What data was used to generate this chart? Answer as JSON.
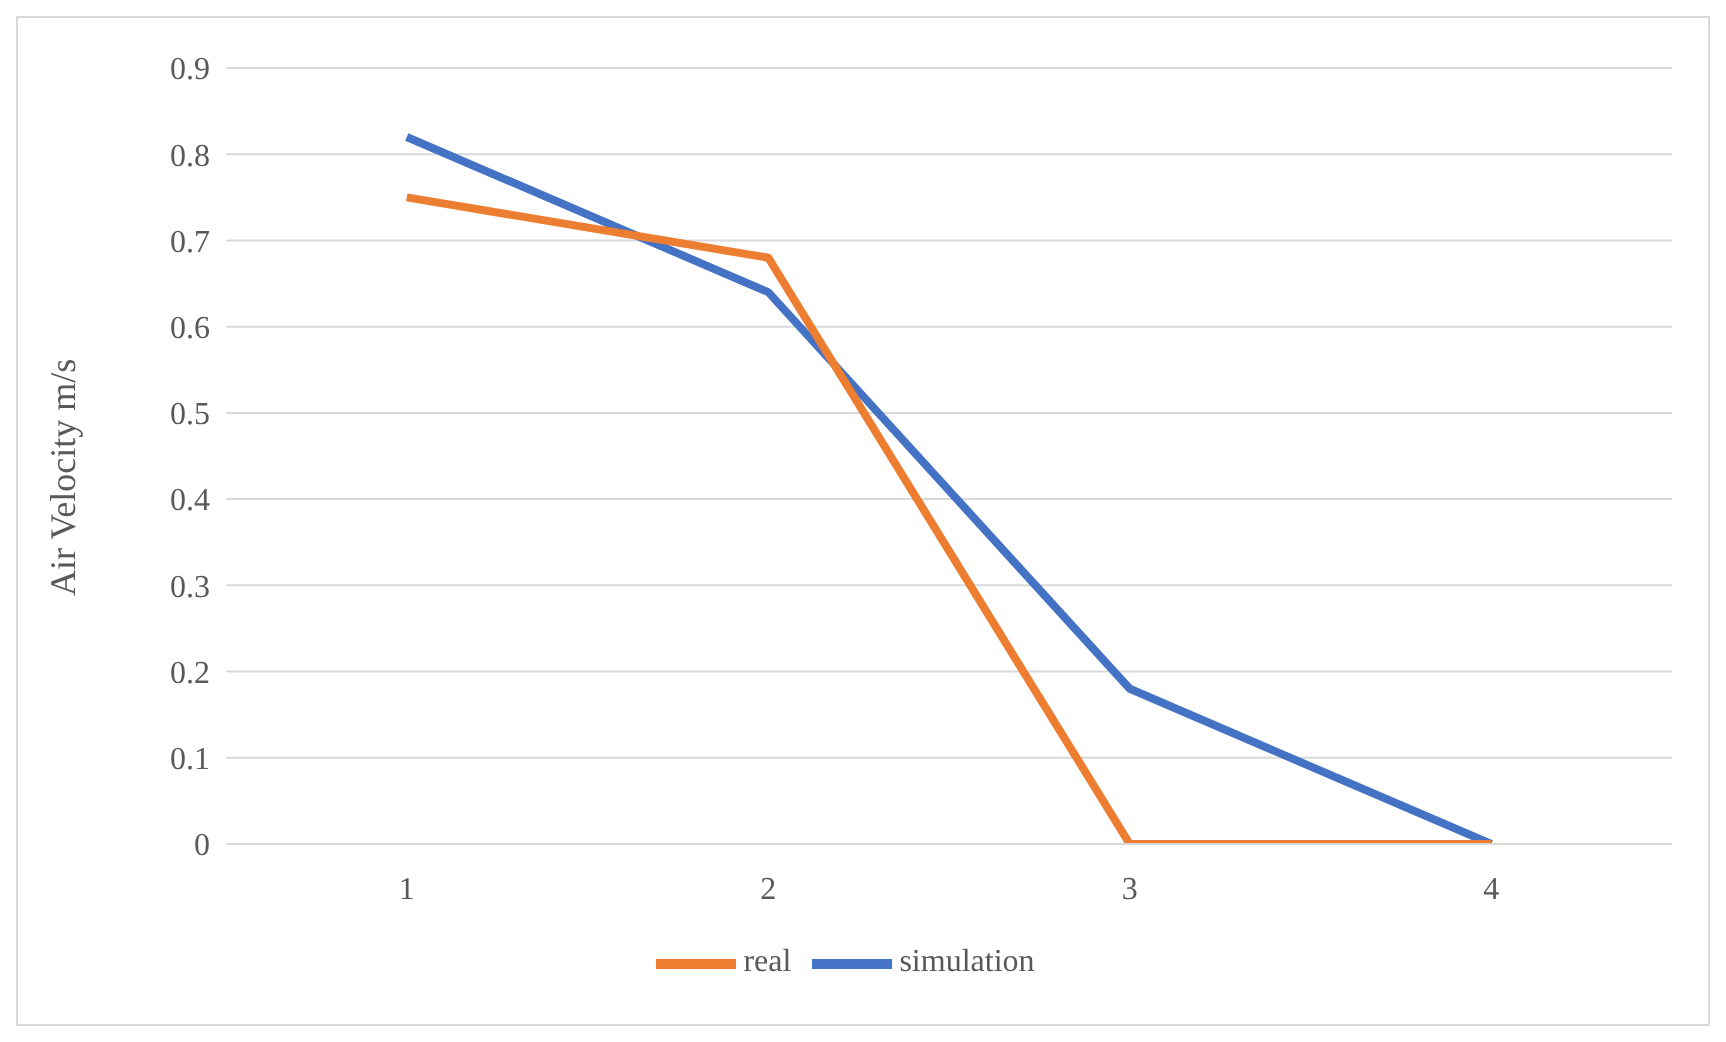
{
  "chart_data": {
    "type": "line",
    "ylabel": "Air  Velocity m/s",
    "categories": [
      "1",
      "2",
      "3",
      "4"
    ],
    "series": [
      {
        "name": "simulation",
        "color": "#4472c4",
        "values": [
          0.82,
          0.64,
          0.18,
          0
        ]
      },
      {
        "name": "real",
        "color": "#ed7d31",
        "values": [
          0.75,
          0.68,
          0,
          0
        ]
      }
    ],
    "ylim": [
      0,
      0.9
    ],
    "yticks": [
      0,
      0.1,
      0.2,
      0.3,
      0.4,
      0.5,
      0.6,
      0.7,
      0.8,
      0.9
    ],
    "grid": "y",
    "legend": "bottom",
    "marker": "none",
    "line_style": "solid"
  }
}
